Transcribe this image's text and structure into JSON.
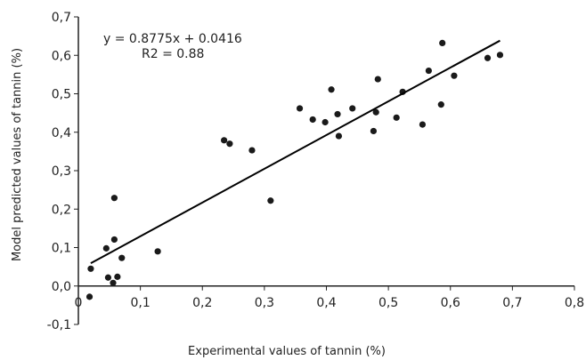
{
  "chart_data": {
    "type": "scatter",
    "title": "",
    "xlabel": "Experimental values of tannin (%)",
    "ylabel": "Model predicted values of tannin (%)",
    "xlim": [
      0,
      0.8
    ],
    "ylim": [
      -0.1,
      0.7
    ],
    "x_ticks": [
      "0",
      "0,1",
      "0,2",
      "0,3",
      "0,4",
      "0,5",
      "0,6",
      "0,7",
      "0,8"
    ],
    "y_ticks": [
      "-0,1",
      "0,0",
      "0,1",
      "0,2",
      "0,3",
      "0,4",
      "0,5",
      "0,6",
      "0,7"
    ],
    "grid": false,
    "point_color": "#1a1a1a",
    "trendline": {
      "slope": 0.8775,
      "intercept": 0.0416,
      "x_range": [
        0.02,
        0.68
      ],
      "equation_label": "y = 0.8775x + 0.0416",
      "r2_label": "R2 = 0.88"
    },
    "points": [
      {
        "x": 0.018,
        "y": -0.028
      },
      {
        "x": 0.02,
        "y": 0.045
      },
      {
        "x": 0.045,
        "y": 0.098
      },
      {
        "x": 0.048,
        "y": 0.022
      },
      {
        "x": 0.056,
        "y": 0.008
      },
      {
        "x": 0.058,
        "y": 0.121
      },
      {
        "x": 0.058,
        "y": 0.229
      },
      {
        "x": 0.063,
        "y": 0.024
      },
      {
        "x": 0.07,
        "y": 0.073
      },
      {
        "x": 0.128,
        "y": 0.09
      },
      {
        "x": 0.235,
        "y": 0.379
      },
      {
        "x": 0.244,
        "y": 0.37
      },
      {
        "x": 0.28,
        "y": 0.353
      },
      {
        "x": 0.31,
        "y": 0.222
      },
      {
        "x": 0.357,
        "y": 0.462
      },
      {
        "x": 0.378,
        "y": 0.433
      },
      {
        "x": 0.398,
        "y": 0.426
      },
      {
        "x": 0.408,
        "y": 0.511
      },
      {
        "x": 0.418,
        "y": 0.447
      },
      {
        "x": 0.42,
        "y": 0.39
      },
      {
        "x": 0.442,
        "y": 0.462
      },
      {
        "x": 0.476,
        "y": 0.403
      },
      {
        "x": 0.48,
        "y": 0.452
      },
      {
        "x": 0.483,
        "y": 0.538
      },
      {
        "x": 0.513,
        "y": 0.438
      },
      {
        "x": 0.523,
        "y": 0.505
      },
      {
        "x": 0.555,
        "y": 0.42
      },
      {
        "x": 0.565,
        "y": 0.56
      },
      {
        "x": 0.585,
        "y": 0.472
      },
      {
        "x": 0.587,
        "y": 0.632
      },
      {
        "x": 0.606,
        "y": 0.547
      },
      {
        "x": 0.66,
        "y": 0.593
      },
      {
        "x": 0.68,
        "y": 0.601
      }
    ]
  }
}
